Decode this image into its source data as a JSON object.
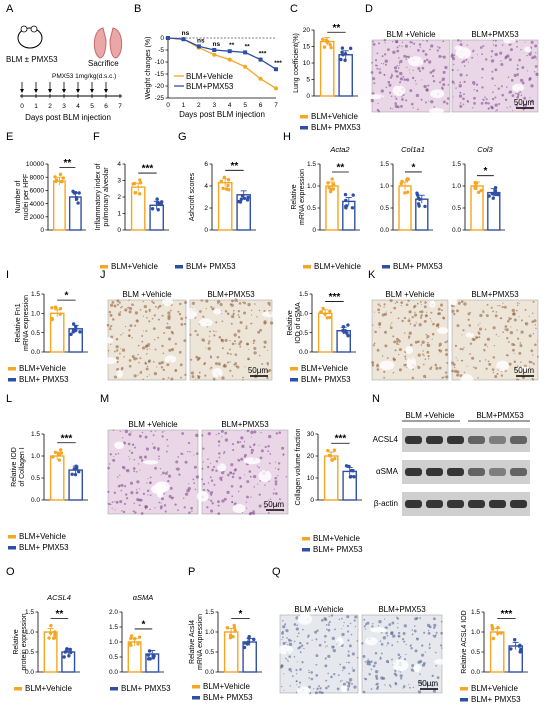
{
  "colors": {
    "vehicle": "#F5A623",
    "pmx": "#2F4FA6",
    "he": "#B96FA6",
    "ihc": "#C8A07A"
  },
  "panels": [
    {
      "label": "A",
      "x": 6,
      "y": 12
    },
    {
      "label": "B",
      "x": 134,
      "y": 12
    },
    {
      "label": "C",
      "x": 290,
      "y": 12
    },
    {
      "label": "D",
      "x": 365,
      "y": 12
    },
    {
      "label": "E",
      "x": 6,
      "y": 140
    },
    {
      "label": "F",
      "x": 93,
      "y": 140
    },
    {
      "label": "G",
      "x": 178,
      "y": 140
    },
    {
      "label": "H",
      "x": 283,
      "y": 140
    },
    {
      "label": "I",
      "x": 6,
      "y": 278
    },
    {
      "label": "J",
      "x": 100,
      "y": 278
    },
    {
      "label": "K",
      "x": 368,
      "y": 278
    },
    {
      "label": "L",
      "x": 6,
      "y": 402
    },
    {
      "label": "M",
      "x": 100,
      "y": 402
    },
    {
      "label": "N",
      "x": 372,
      "y": 402
    },
    {
      "label": "O",
      "x": 6,
      "y": 575
    },
    {
      "label": "P",
      "x": 188,
      "y": 575
    },
    {
      "label": "Q",
      "x": 272,
      "y": 575
    }
  ],
  "panelA": {
    "treatment": "BLM ± PMX53",
    "sacrifice": "Sacrifice",
    "dose": "PMX53 1mg/kg(d.s.c.)",
    "days": [
      "0",
      "1",
      "2",
      "3",
      "4",
      "5",
      "6",
      "7"
    ],
    "xlabel": "Days post BLM injection"
  },
  "micrographs": [
    {
      "id": "D-veh",
      "title": "BLM +Vehicle",
      "scale": "",
      "style": "he"
    },
    {
      "id": "D-pmx",
      "title": "BLM+PMX53",
      "scale": "50μm",
      "style": "he"
    },
    {
      "id": "J-veh",
      "title": "BLM +Vehicle",
      "scale": "",
      "style": "ihc"
    },
    {
      "id": "J-pmx",
      "title": "BLM+PMX53",
      "scale": "50μm",
      "style": "ihc"
    },
    {
      "id": "K-veh",
      "title": "BLM +Vehicle",
      "scale": "",
      "style": "ihc"
    },
    {
      "id": "K-pmx",
      "title": "BLM+PMX53",
      "scale": "50μm",
      "style": "ihc"
    },
    {
      "id": "M-veh",
      "title": "BLM +Vehicle",
      "scale": "",
      "style": "he"
    },
    {
      "id": "M-pmx",
      "title": "BLM+PMX53",
      "scale": "50μm",
      "style": "he"
    },
    {
      "id": "Q-veh",
      "title": "BLM +Vehicle",
      "scale": "",
      "style": "ihcq"
    },
    {
      "id": "Q-pmx",
      "title": "BLM+PMX53",
      "scale": "50μm",
      "style": "ihcq"
    }
  ],
  "blot": {
    "header_left": "BLM +Vehicle",
    "header_right": "BLM+PMX53",
    "bands": [
      "ACSL4",
      "αSMA",
      "β-actin"
    ]
  },
  "legends": {
    "v1": "BLM+Vehicle",
    "p1": "BLM+PMX53",
    "p2": "BLM+ PMX53"
  },
  "chart_data": [
    {
      "id": "B",
      "type": "line",
      "ylabel": "Weight changes (%)",
      "xlabel": "Days post BLM injection",
      "x": [
        0,
        1,
        2,
        3,
        4,
        5,
        6,
        7
      ],
      "ylim": [
        -25,
        0
      ],
      "yticks": [
        "0",
        "-5",
        "-10",
        "-15",
        "-20",
        "-25"
      ],
      "series": [
        {
          "name": "BLM+Vehicle",
          "values": [
            0,
            -0.5,
            -4,
            -7,
            -9,
            -12,
            -17,
            -21
          ]
        },
        {
          "name": "BLM+PMX53",
          "values": [
            0,
            -0.5,
            -3.5,
            -5,
            -5.5,
            -6,
            -9,
            -13
          ]
        }
      ],
      "sig": [
        "ns",
        "ns",
        "ns",
        "**",
        "**",
        "***",
        "***"
      ]
    },
    {
      "id": "C",
      "type": "bar",
      "ylabel": "Lung coefficient(%)",
      "ylim": [
        0,
        20
      ],
      "yticks": [
        "0",
        "5",
        "10",
        "15",
        "20"
      ],
      "values": [
        16.5,
        12.5
      ],
      "sig": "**",
      "legend": [
        "BLM+Vehicle",
        "BLM+ PMX53"
      ]
    },
    {
      "id": "E",
      "type": "bar",
      "ylabel": "Number of nuclei per HPF",
      "ylim": [
        0,
        10000
      ],
      "yticks": [
        "0",
        "2000",
        "4000",
        "6000",
        "8000",
        "10000"
      ],
      "values": [
        7400,
        5000
      ],
      "sig": "**"
    },
    {
      "id": "F",
      "type": "bar",
      "ylabel": "Inflammatory index of pulmonary alveolar",
      "ylim": [
        0,
        4
      ],
      "yticks": [
        "0",
        "1",
        "2",
        "3",
        "4"
      ],
      "values": [
        2.6,
        1.5
      ],
      "sig": "***"
    },
    {
      "id": "G",
      "type": "bar",
      "ylabel": "Ashcroft scores",
      "ylim": [
        0,
        6
      ],
      "yticks": [
        "0",
        "2",
        "4",
        "6"
      ],
      "values": [
        4.3,
        3.2
      ],
      "sig": "**",
      "legend": [
        "BLM+Vehicle",
        "BLM+ PMX53"
      ]
    },
    {
      "id": "H1",
      "type": "bar",
      "title": "Acta2",
      "ylabel": "Relative mRNA expression",
      "ylim": [
        0,
        1.5
      ],
      "yticks": [
        "0",
        "0.5",
        "1.0",
        "1.5"
      ],
      "values": [
        1.0,
        0.65
      ],
      "sig": "**"
    },
    {
      "id": "H2",
      "type": "bar",
      "title": "Col1a1",
      "ylim": [
        0,
        1.5
      ],
      "yticks": [
        "0.0",
        "0.5",
        "1.0",
        "1.5"
      ],
      "values": [
        1.0,
        0.7
      ],
      "sig": "*"
    },
    {
      "id": "H3",
      "type": "bar",
      "title": "Col3",
      "ylim": [
        0,
        1.5
      ],
      "yticks": [
        "0.0",
        "0.5",
        "1.0",
        "1.5"
      ],
      "values": [
        1.0,
        0.85
      ],
      "sig": "*",
      "legend": [
        "BLM+Vehicle",
        "BLM+ PMX53"
      ]
    },
    {
      "id": "I",
      "type": "bar",
      "ylabel": "Relative Fn1 mRNA expression",
      "ylim": [
        0,
        1.5
      ],
      "yticks": [
        "0.0",
        "0.5",
        "1.0",
        "1.5"
      ],
      "values": [
        1.0,
        0.6
      ],
      "sig": "*",
      "legend": [
        "BLM+Vehicle",
        "BLM+ PMX53"
      ]
    },
    {
      "id": "Jc",
      "type": "bar",
      "ylabel": "Relative IOD of αSMA",
      "ylim": [
        0,
        1.5
      ],
      "yticks": [
        "0.0",
        "0.5",
        "1.0",
        "1.5"
      ],
      "values": [
        1.0,
        0.55
      ],
      "sig": "***",
      "legend": [
        "BLM+Vehicle",
        "BLM+ PMX53"
      ]
    },
    {
      "id": "L",
      "type": "bar",
      "ylabel": "Relative IOD of Collagen I",
      "ylim": [
        0,
        1.5
      ],
      "yticks": [
        "0.0",
        "0.5",
        "1.0",
        "1.5"
      ],
      "values": [
        1.0,
        0.68
      ],
      "sig": "***",
      "legend": [
        "BLM+Vehicle",
        "BLM+ PMX53"
      ]
    },
    {
      "id": "Mc",
      "type": "bar",
      "ylabel": "Collagen volume fraction",
      "ylim": [
        0,
        30
      ],
      "yticks": [
        "0",
        "10",
        "20",
        "30"
      ],
      "values": [
        20,
        13
      ],
      "sig": "***",
      "legend": [
        "BLM+Vehicle",
        "BLM+ PMX53"
      ]
    },
    {
      "id": "O1",
      "type": "bar",
      "title": "ACSL4",
      "ylabel": "Relative protein expression",
      "ylim": [
        0,
        1.5
      ],
      "yticks": [
        "0.0",
        "0.5",
        "1.0",
        "1.5"
      ],
      "values": [
        1.0,
        0.5
      ],
      "sig": "**",
      "legend": [
        "BLM+Vehicle"
      ]
    },
    {
      "id": "O2",
      "type": "bar",
      "title": "αSMA",
      "ylim": [
        0,
        2.0
      ],
      "yticks": [
        "0.0",
        "0.5",
        "1.0",
        "1.5",
        "2.0"
      ],
      "values": [
        1.0,
        0.6
      ],
      "sig": "*",
      "legend": [
        "BLM+ PMX53"
      ]
    },
    {
      "id": "P",
      "type": "bar",
      "ylabel": "Relative Acsl4 mRNA expression",
      "ylim": [
        0,
        1.5
      ],
      "yticks": [
        "0.0",
        "0.5",
        "1.0",
        "1.5"
      ],
      "values": [
        1.0,
        0.75
      ],
      "sig": "*",
      "legend": [
        "BLM+Vehicle",
        "BLM+ PMX53"
      ]
    },
    {
      "id": "Qc",
      "type": "bar",
      "ylabel": "Relative ACSL4 IOD",
      "ylim": [
        0,
        1.5
      ],
      "yticks": [
        "0.0",
        "0.5",
        "1.0",
        "1.5"
      ],
      "values": [
        1.0,
        0.65
      ],
      "sig": "***",
      "legend": [
        "BLM+Vehicle",
        "BLM+ PMX53"
      ]
    }
  ]
}
